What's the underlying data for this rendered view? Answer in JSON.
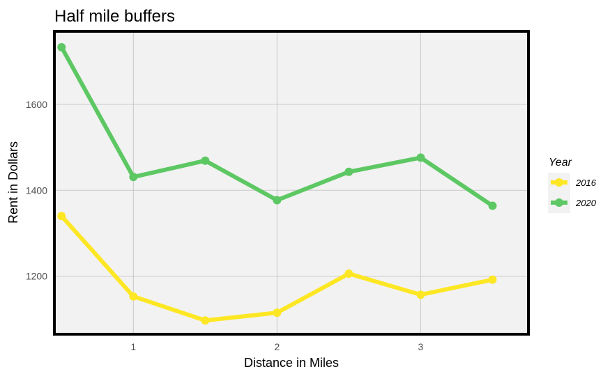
{
  "chart_data": {
    "type": "line",
    "title": "Half mile buffers",
    "xlabel": "Distance in Miles",
    "ylabel": "Rent in Dollars",
    "xlim": [
      0.45,
      3.75
    ],
    "ylim": [
      1065,
      1770
    ],
    "xticks": [
      1,
      2,
      3
    ],
    "yticks": [
      1200,
      1400,
      1600
    ],
    "x": [
      0.5,
      1.0,
      1.5,
      2.0,
      2.5,
      3.0,
      3.5
    ],
    "grid": true,
    "legend": {
      "title": "Year",
      "position": "right"
    },
    "series": [
      {
        "name": "2016",
        "color": "#FDE725",
        "values": [
          1340,
          1153,
          1097,
          1115,
          1206,
          1157,
          1192
        ]
      },
      {
        "name": "2020",
        "color": "#5DC863",
        "values": [
          1733,
          1431,
          1469,
          1377,
          1443,
          1476,
          1364
        ]
      }
    ]
  }
}
